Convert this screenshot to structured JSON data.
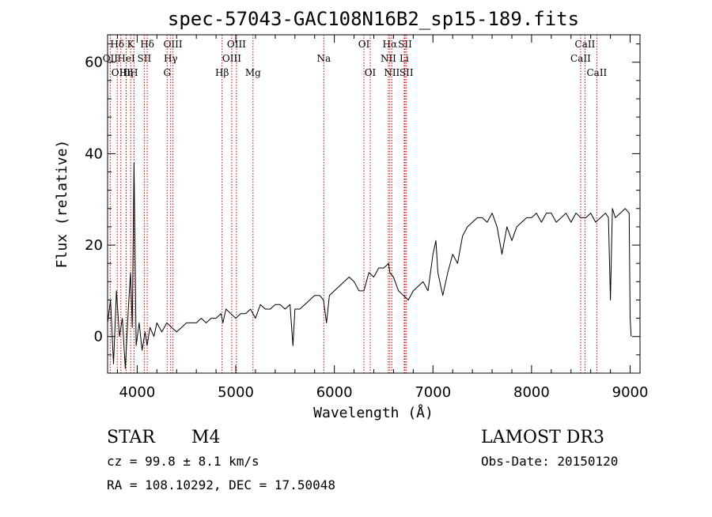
{
  "chart_data": {
    "type": "line",
    "title": "spec-57043-GAC108N16B2_sp15-189.fits",
    "xlabel": "Wavelength (Å)",
    "ylabel": "Flux (relative)",
    "xlim": [
      3700,
      9100
    ],
    "ylim": [
      -8,
      66
    ],
    "xticks": [
      4000,
      5000,
      6000,
      7000,
      8000,
      9000
    ],
    "yticks": [
      0,
      20,
      40,
      60
    ],
    "x_minor_step": 200,
    "y_minor_step": 4,
    "series": [
      {
        "name": "flux",
        "color": "#000000",
        "x": [
          3700,
          3730,
          3760,
          3790,
          3820,
          3850,
          3880,
          3910,
          3933,
          3950,
          3968,
          3990,
          4020,
          4050,
          4080,
          4100,
          4130,
          4170,
          4200,
          4250,
          4300,
          4350,
          4400,
          4450,
          4500,
          4550,
          4600,
          4650,
          4700,
          4750,
          4800,
          4850,
          4870,
          4900,
          4950,
          5000,
          5050,
          5100,
          5150,
          5200,
          5250,
          5300,
          5350,
          5400,
          5450,
          5500,
          5550,
          5580,
          5600,
          5650,
          5700,
          5750,
          5800,
          5850,
          5890,
          5920,
          5950,
          6000,
          6050,
          6100,
          6150,
          6200,
          6250,
          6300,
          6350,
          6400,
          6450,
          6500,
          6550,
          6563,
          6600,
          6650,
          6700,
          6750,
          6800,
          6850,
          6900,
          6950,
          7000,
          7030,
          7050,
          7080,
          7100,
          7150,
          7200,
          7250,
          7300,
          7350,
          7400,
          7450,
          7500,
          7550,
          7600,
          7650,
          7700,
          7750,
          7800,
          7850,
          7900,
          7950,
          8000,
          8050,
          8100,
          8150,
          8200,
          8250,
          8300,
          8350,
          8400,
          8450,
          8500,
          8550,
          8600,
          8650,
          8700,
          8750,
          8780,
          8800,
          8820,
          8850,
          8900,
          8950,
          8990,
          9000,
          9010
        ],
        "values": [
          3,
          8,
          -6,
          10,
          0,
          4,
          -7,
          6,
          14,
          2,
          38,
          -2,
          3,
          -3,
          1,
          -2,
          2,
          0,
          3,
          1,
          3,
          2,
          1,
          2,
          3,
          3,
          3,
          4,
          3,
          4,
          4,
          5,
          3,
          6,
          5,
          4,
          5,
          5,
          6,
          4,
          7,
          6,
          6,
          7,
          7,
          6,
          7,
          -2,
          6,
          6,
          7,
          8,
          9,
          9,
          8,
          3,
          9,
          10,
          11,
          12,
          13,
          12,
          10,
          10,
          14,
          13,
          15,
          15,
          16,
          14,
          13,
          10,
          9,
          8,
          10,
          11,
          12,
          10,
          18,
          21,
          14,
          11,
          9,
          14,
          18,
          16,
          22,
          24,
          25,
          26,
          26,
          25,
          27,
          24,
          18,
          24,
          21,
          24,
          25,
          26,
          26,
          27,
          25,
          27,
          27,
          25,
          26,
          27,
          25,
          27,
          26,
          26,
          27,
          25,
          26,
          27,
          26,
          8,
          28,
          26,
          27,
          28,
          27,
          4,
          0
        ]
      }
    ],
    "lines": [
      {
        "label": "Hδ",
        "x": 3798,
        "row": 0
      },
      {
        "label": "OII",
        "x": 3727,
        "row": 1
      },
      {
        "label": "OIII",
        "x": 3835,
        "row": 2
      },
      {
        "label": "HeI",
        "x": 3889,
        "row": 1
      },
      {
        "label": "Hη",
        "x": 3889,
        "row": 2
      },
      {
        "label": "K",
        "x": 3934,
        "row": 0
      },
      {
        "label": "H",
        "x": 3968,
        "row": 2
      },
      {
        "label": "Hδ",
        "x": 4102,
        "row": 0
      },
      {
        "label": "SII",
        "x": 4072,
        "row": 1
      },
      {
        "label": "OIII",
        "x": 4363,
        "row": 0
      },
      {
        "label": "Hγ",
        "x": 4340,
        "row": 1
      },
      {
        "label": "G",
        "x": 4304,
        "row": 2
      },
      {
        "label": "OIII",
        "x": 5007,
        "row": 0
      },
      {
        "label": "OIII",
        "x": 4959,
        "row": 1
      },
      {
        "label": "Hβ",
        "x": 4861,
        "row": 2
      },
      {
        "label": "Mg",
        "x": 5175,
        "row": 2
      },
      {
        "label": "Na",
        "x": 5893,
        "row": 1
      },
      {
        "label": "OI",
        "x": 6300,
        "row": 0
      },
      {
        "label": "OI",
        "x": 6364,
        "row": 2
      },
      {
        "label": "Hα",
        "x": 6563,
        "row": 0
      },
      {
        "label": "NII",
        "x": 6548,
        "row": 1
      },
      {
        "label": "NII",
        "x": 6583,
        "row": 2
      },
      {
        "label": "SII",
        "x": 6717,
        "row": 0
      },
      {
        "label": "Li",
        "x": 6708,
        "row": 1
      },
      {
        "label": "SII",
        "x": 6731,
        "row": 2
      },
      {
        "label": "CaII",
        "x": 8542,
        "row": 0
      },
      {
        "label": "CaII",
        "x": 8498,
        "row": 1
      },
      {
        "label": "CaII",
        "x": 8662,
        "row": 2
      }
    ],
    "line_color": "#cc0000"
  },
  "info": {
    "object_class": "STAR",
    "subclass": "M4",
    "survey": "LAMOST DR3",
    "cz": "cz = 99.8 ± 8.1 km/s",
    "obs_date": "Obs-Date: 20150120",
    "coords": "RA = 108.10292, DEC =  17.50048"
  }
}
